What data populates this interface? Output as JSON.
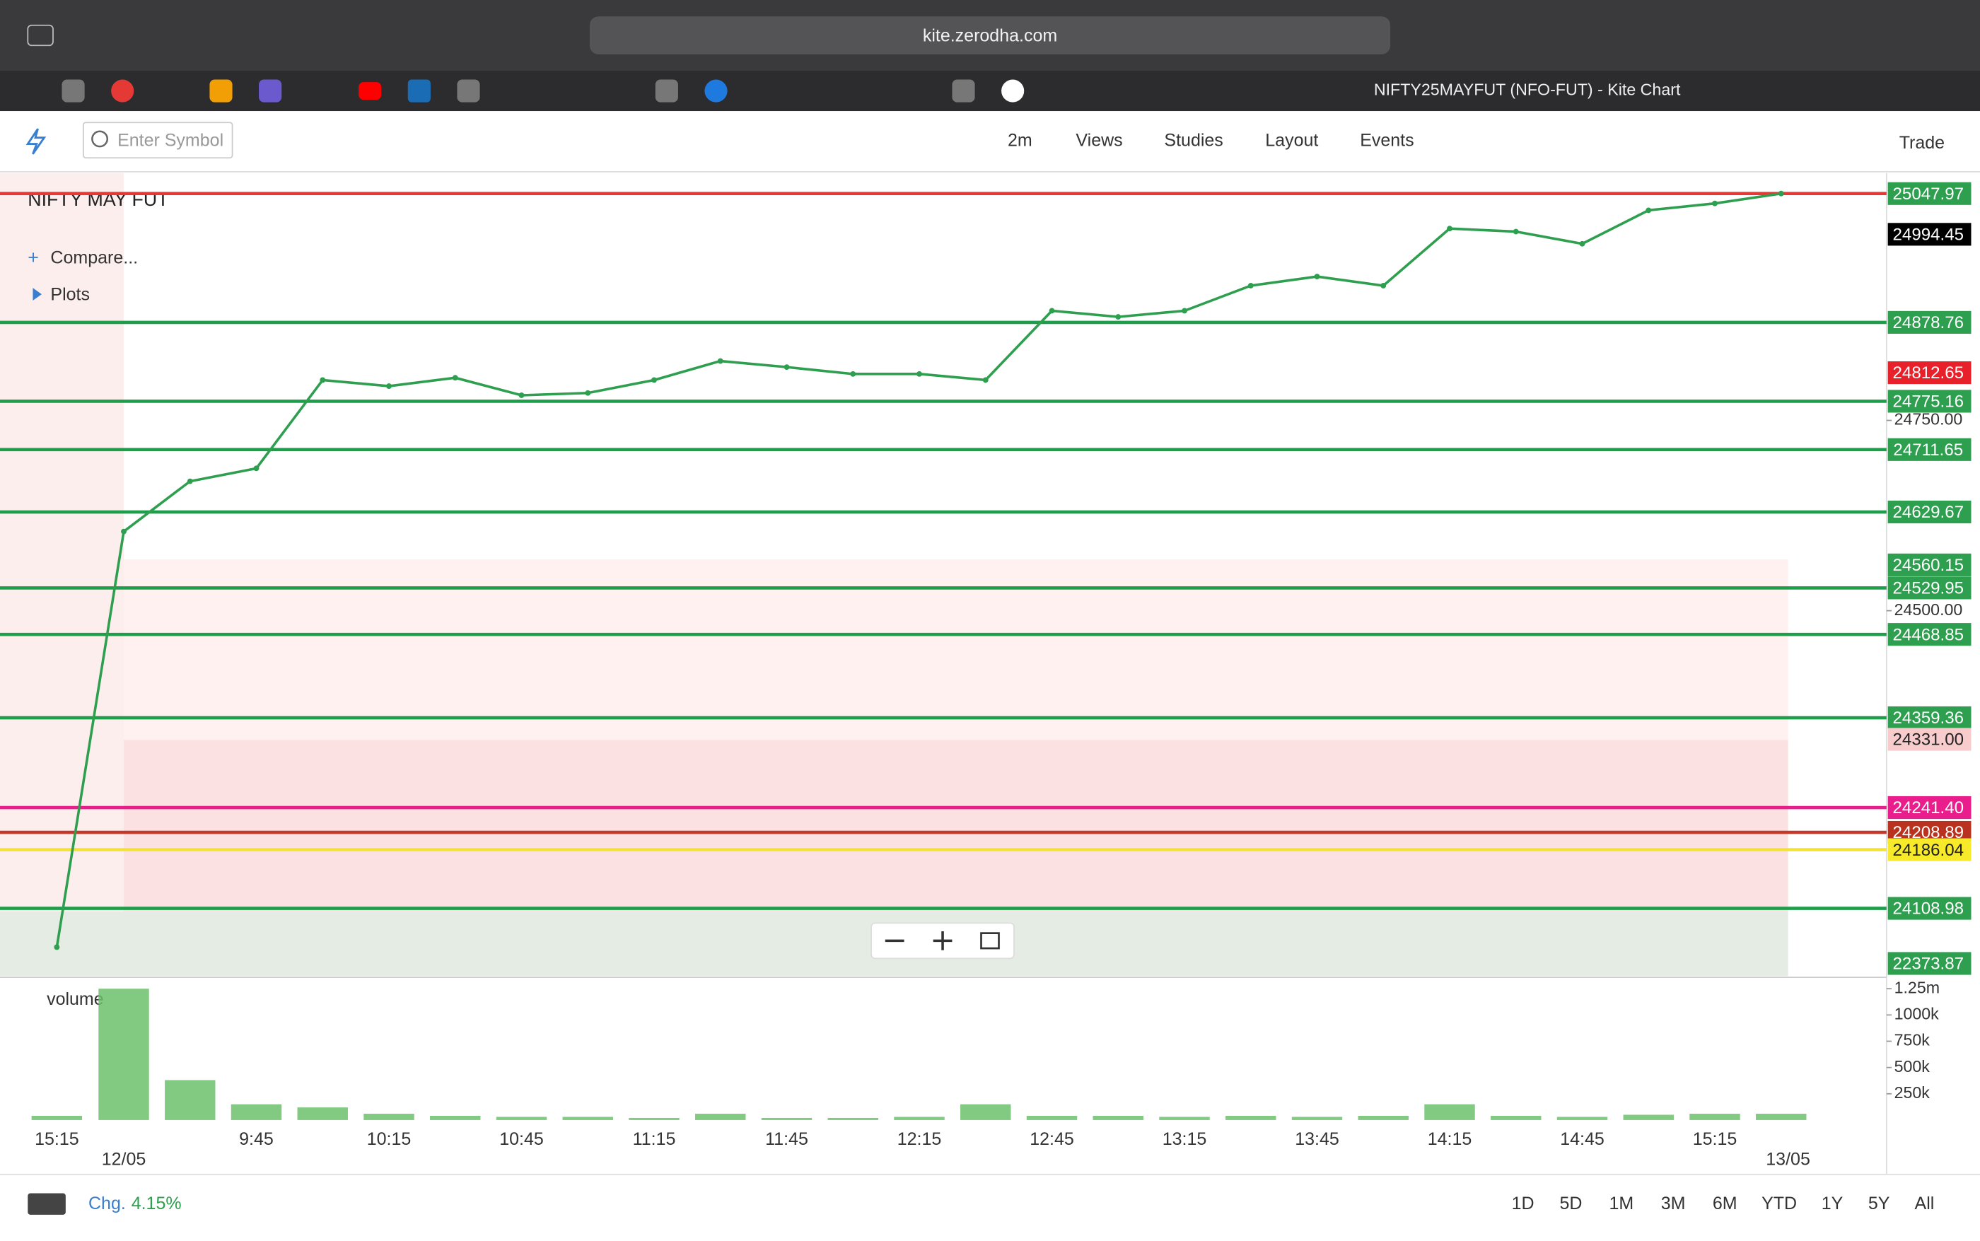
{
  "browser": {
    "url": "kite.zerodha.com",
    "tab_title": "NIFTY25MAYFUT (NFO-FUT) - Kite Chart"
  },
  "toolbar": {
    "search_placeholder": "Enter Symbol",
    "interval": "2m",
    "menus": [
      "Views",
      "Studies",
      "Layout",
      "Events"
    ],
    "trade": "Trade"
  },
  "chart_data": {
    "type": "line",
    "title": "NIFTY MAY FUT",
    "compare": "Compare...",
    "plots": "Plots",
    "categories": [
      "15:15",
      "12/05",
      null,
      "9:45",
      null,
      "10:15",
      null,
      "10:45",
      null,
      "11:15",
      null,
      "11:45",
      null,
      "12:15",
      null,
      "12:45",
      null,
      "13:15",
      null,
      "13:45",
      null,
      "14:15",
      null,
      "14:45",
      null,
      "15:15",
      "13/05"
    ],
    "values": [
      24058,
      24604,
      24670,
      24687,
      24803,
      24795,
      24806,
      24783,
      24786,
      24803,
      24828,
      24820,
      24811,
      24811,
      24803,
      24894,
      24886,
      24894,
      24927,
      24939,
      24927,
      25002,
      24998,
      24982,
      25026,
      25035,
      25048
    ],
    "color": "#2e9e4f",
    "ylim": [
      24020,
      25075
    ],
    "yticks": [
      {
        "value": 24500,
        "label": "24500.00"
      },
      {
        "value": 24750,
        "label": "24750.00"
      }
    ],
    "levels": [
      {
        "value": 25047.97,
        "color": "#e53935",
        "label_color": "#2e9e4f",
        "text_color": "#ffffff",
        "line": true
      },
      {
        "value": 24994.45,
        "color": "#000000",
        "label_color": "#000000",
        "text_color": "#ffffff",
        "line": false
      },
      {
        "value": 24878.76,
        "color": "#1e9e4a",
        "label_color": "#2e9e4f",
        "text_color": "#ffffff",
        "line": true
      },
      {
        "value": 24812.65,
        "color": "#e53935",
        "label_color": "#e8202a",
        "text_color": "#ffffff",
        "line": false
      },
      {
        "value": 24775.16,
        "color": "#1e9e4a",
        "label_color": "#2e9e4f",
        "text_color": "#ffffff",
        "line": true
      },
      {
        "value": 24711.65,
        "color": "#1e9e4a",
        "label_color": "#2e9e4f",
        "text_color": "#ffffff",
        "line": true
      },
      {
        "value": 24629.67,
        "color": "#1e9e4a",
        "label_color": "#2e9e4f",
        "text_color": "#ffffff",
        "line": true
      },
      {
        "value": 24560.15,
        "color": "#1e9e4a",
        "label_color": "#2e9e4f",
        "text_color": "#ffffff",
        "line": false
      },
      {
        "value": 24529.95,
        "color": "#1e9e4a",
        "label_color": "#2e9e4f",
        "text_color": "#ffffff",
        "line": true
      },
      {
        "value": 24468.85,
        "color": "#1e9e4a",
        "label_color": "#2e9e4f",
        "text_color": "#ffffff",
        "line": true
      },
      {
        "value": 24359.36,
        "color": "#1e9e4a",
        "label_color": "#2e9e4f",
        "text_color": "#ffffff",
        "line": true
      },
      {
        "value": 24331,
        "label": "24331.00",
        "color": "#f4b8b8",
        "label_color": "#f8cccc",
        "text_color": "#222222",
        "line": false
      },
      {
        "value": 24241.4,
        "label": "24241.40",
        "color": "#e91e8c",
        "label_color": "#e91e8c",
        "text_color": "#ffffff",
        "line": true
      },
      {
        "value": 24208.89,
        "color": "#c0392b",
        "label_color": "#b8321f",
        "text_color": "#ffffff",
        "line": true
      },
      {
        "value": 24186.04,
        "color": "#f5e236",
        "label_color": "#f7ea2a",
        "text_color": "#222222",
        "line": true
      },
      {
        "value": 24108.98,
        "color": "#1e9e4a",
        "label_color": "#2e9e4f",
        "text_color": "#ffffff",
        "line": true
      },
      {
        "value": 22373.87,
        "color": "#1e9e4a",
        "label_color": "#2e9e4f",
        "text_color": "#ffffff",
        "line": false
      }
    ],
    "volume": {
      "label": "volume",
      "color": "#6cbf6c",
      "values": [
        40000,
        1250000,
        380000,
        150000,
        120000,
        60000,
        40000,
        30000,
        30000,
        20000,
        60000,
        20000,
        20000,
        30000,
        150000,
        40000,
        40000,
        30000,
        40000,
        30000,
        40000,
        150000,
        40000,
        30000,
        50000,
        60000,
        60000
      ],
      "ylim": [
        0,
        1346000
      ],
      "yticks": [
        {
          "value": 250000,
          "label": "250k"
        },
        {
          "value": 500000,
          "label": "500k"
        },
        {
          "value": 750000,
          "label": "750k"
        },
        {
          "value": 1000000,
          "label": "1000k"
        },
        {
          "value": 1250000,
          "label": "1.25m"
        }
      ]
    },
    "change_label": "Chg.",
    "change": "4.15%",
    "ranges": [
      "1D",
      "5D",
      "1M",
      "3M",
      "6M",
      "YTD",
      "1Y",
      "5Y",
      "All"
    ]
  }
}
